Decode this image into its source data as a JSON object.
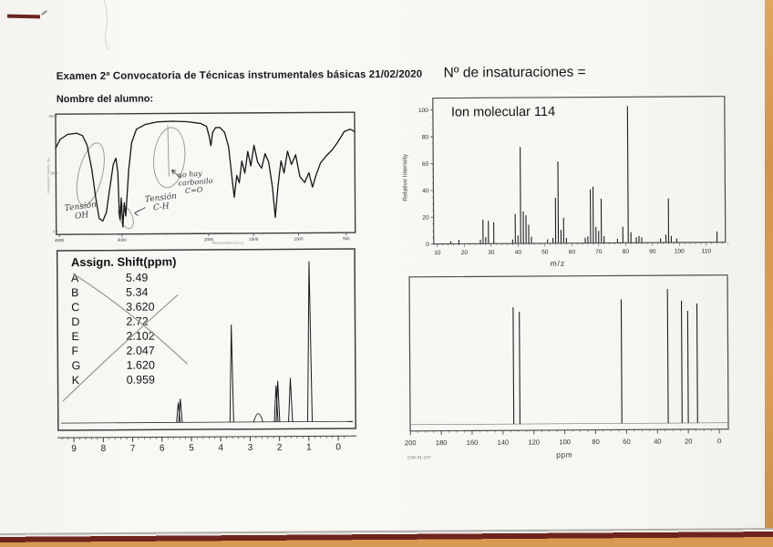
{
  "page": {
    "exam_title": "Examen 2ª Convocatoria de Técnicas instrumentales básicas 21/02/2020",
    "student_name_label": "Nombre del alumno:",
    "unsaturations_question": "Nº de insaturaciones ="
  },
  "ir_spectrum": {
    "y_axis_label": "TRANSMITTANCE (%)",
    "x_axis_label": "Wavenumbers (cm-1)",
    "handwritten": {
      "oh1": "Tensión",
      "oh2": "OH",
      "ch1": "Tensión",
      "ch2": "C-H",
      "nc1": "no hay",
      "nc2": "carbonilo",
      "nc3": "C=O"
    }
  },
  "mass_spectrum": {
    "annotation": "Ion molecular 114",
    "y_axis_label": "Relative Intensity",
    "x_axis_label": "m/z"
  },
  "h1_nmr": {
    "table": {
      "header": "Assign. Shift(ppm)",
      "rows": [
        [
          "A",
          "5.49"
        ],
        [
          "B",
          "5.34"
        ],
        [
          "C",
          "3.620"
        ],
        [
          "D",
          "2.72"
        ],
        [
          "E",
          "2.102"
        ],
        [
          "F",
          "2.047"
        ],
        [
          "G",
          "1.620"
        ],
        [
          "K",
          "0.959"
        ]
      ]
    }
  },
  "c13_nmr": {
    "x_axis_label": "ppm",
    "code": "C05-01-137"
  },
  "chart_data": [
    {
      "name": "ir",
      "type": "line",
      "x_ticks": [
        "4000",
        "3000",
        "2000",
        "1500",
        "1000",
        "500"
      ],
      "x_tick_pos": [
        1,
        22,
        51,
        66,
        81,
        97
      ],
      "y_ticks": [
        "100",
        "50",
        "0"
      ],
      "curve": [
        [
          0,
          28
        ],
        [
          1.5,
          21
        ],
        [
          4,
          17
        ],
        [
          7,
          16
        ],
        [
          9,
          18
        ],
        [
          10.5,
          26
        ],
        [
          12,
          46
        ],
        [
          13.3,
          70
        ],
        [
          14.4,
          87
        ],
        [
          15.6,
          89
        ],
        [
          16.8,
          82
        ],
        [
          18,
          62
        ],
        [
          19.2,
          42
        ],
        [
          20.1,
          37
        ],
        [
          20.7,
          48
        ],
        [
          21.1,
          80
        ],
        [
          21.4,
          88
        ],
        [
          21.8,
          70
        ],
        [
          22.3,
          94
        ],
        [
          22.8,
          74
        ],
        [
          23.3,
          85
        ],
        [
          23.8,
          66
        ],
        [
          24.4,
          46
        ],
        [
          25.4,
          24
        ],
        [
          27,
          13
        ],
        [
          30,
          9
        ],
        [
          34,
          7
        ],
        [
          39,
          6.5
        ],
        [
          44,
          7
        ],
        [
          48.5,
          8.5
        ],
        [
          50.5,
          11
        ],
        [
          51.4,
          20
        ],
        [
          51.9,
          27
        ],
        [
          52.5,
          16
        ],
        [
          53.5,
          12
        ],
        [
          55,
          12
        ],
        [
          56.5,
          16
        ],
        [
          57.8,
          28
        ],
        [
          58.8,
          52
        ],
        [
          59.6,
          70
        ],
        [
          60.5,
          52
        ],
        [
          61.3,
          58
        ],
        [
          62.2,
          40
        ],
        [
          63.2,
          50
        ],
        [
          64.2,
          32
        ],
        [
          65.2,
          44
        ],
        [
          66.3,
          27
        ],
        [
          67.5,
          41
        ],
        [
          68.8,
          46
        ],
        [
          70,
          34
        ],
        [
          71.2,
          41
        ],
        [
          72.4,
          62
        ],
        [
          73.3,
          87
        ],
        [
          74.2,
          62
        ],
        [
          75.3,
          40
        ],
        [
          76.3,
          50
        ],
        [
          77.5,
          32
        ],
        [
          78.8,
          43
        ],
        [
          80.2,
          35
        ],
        [
          81.6,
          53
        ],
        [
          83.2,
          58
        ],
        [
          84.6,
          50
        ],
        [
          85.8,
          62
        ],
        [
          87,
          52
        ],
        [
          88.5,
          42
        ],
        [
          90.5,
          36
        ],
        [
          92.5,
          31
        ],
        [
          94.5,
          24
        ],
        [
          96.5,
          16
        ],
        [
          98.5,
          14
        ],
        [
          100,
          16
        ]
      ]
    },
    {
      "name": "ms",
      "type": "bar",
      "x_label": "m/z",
      "y_label": "Relative Intensity",
      "x_ticks": [
        10,
        20,
        30,
        40,
        50,
        60,
        70,
        80,
        90,
        100,
        110
      ],
      "y_ticks": [
        100,
        80,
        60,
        40,
        20,
        0
      ],
      "x_range": [
        10,
        118
      ],
      "y_range": [
        0,
        105
      ],
      "peaks": [
        [
          15,
          2
        ],
        [
          18,
          3
        ],
        [
          26,
          3
        ],
        [
          27,
          18
        ],
        [
          28,
          5
        ],
        [
          29,
          17
        ],
        [
          31,
          16
        ],
        [
          38,
          3
        ],
        [
          39,
          22
        ],
        [
          40,
          6
        ],
        [
          41,
          72
        ],
        [
          42,
          24
        ],
        [
          43,
          21
        ],
        [
          44,
          14
        ],
        [
          45,
          5
        ],
        [
          51,
          3
        ],
        [
          53,
          4
        ],
        [
          54,
          34
        ],
        [
          55,
          61
        ],
        [
          56,
          10
        ],
        [
          57,
          19
        ],
        [
          58,
          4
        ],
        [
          65,
          4
        ],
        [
          66,
          5
        ],
        [
          67,
          40
        ],
        [
          68,
          42
        ],
        [
          69,
          12
        ],
        [
          70,
          9
        ],
        [
          71,
          33
        ],
        [
          72,
          5
        ],
        [
          77,
          3
        ],
        [
          79,
          12
        ],
        [
          81,
          102
        ],
        [
          82,
          8
        ],
        [
          84,
          4
        ],
        [
          85,
          5
        ],
        [
          86,
          4
        ],
        [
          93,
          3
        ],
        [
          95,
          6
        ],
        [
          96,
          33
        ],
        [
          97,
          5
        ],
        [
          99,
          3
        ],
        [
          114,
          8
        ]
      ]
    },
    {
      "name": "h1",
      "type": "line",
      "x_ticks": [
        9,
        8,
        7,
        6,
        5,
        4,
        3,
        2,
        1,
        0
      ],
      "x_range": [
        9,
        0
      ],
      "peaks": [
        [
          5.44,
          22,
          2
        ],
        [
          5.37,
          26,
          2
        ],
        [
          3.62,
          107,
          2
        ],
        [
          2.72,
          9,
          5
        ],
        [
          2.11,
          40,
          2
        ],
        [
          2.05,
          45,
          2
        ],
        [
          1.62,
          48,
          2.2
        ],
        [
          0.96,
          176,
          2.5
        ]
      ]
    },
    {
      "name": "c13",
      "type": "line",
      "x_label": "ppm",
      "x_ticks": [
        200,
        180,
        160,
        140,
        120,
        100,
        80,
        60,
        40,
        20,
        0
      ],
      "x_range": [
        200,
        0
      ],
      "peaks": [
        [
          133,
          128
        ],
        [
          129,
          123
        ],
        [
          63,
          136
        ],
        [
          33,
          147
        ],
        [
          24,
          134
        ],
        [
          20,
          123
        ],
        [
          14,
          131
        ]
      ]
    }
  ]
}
